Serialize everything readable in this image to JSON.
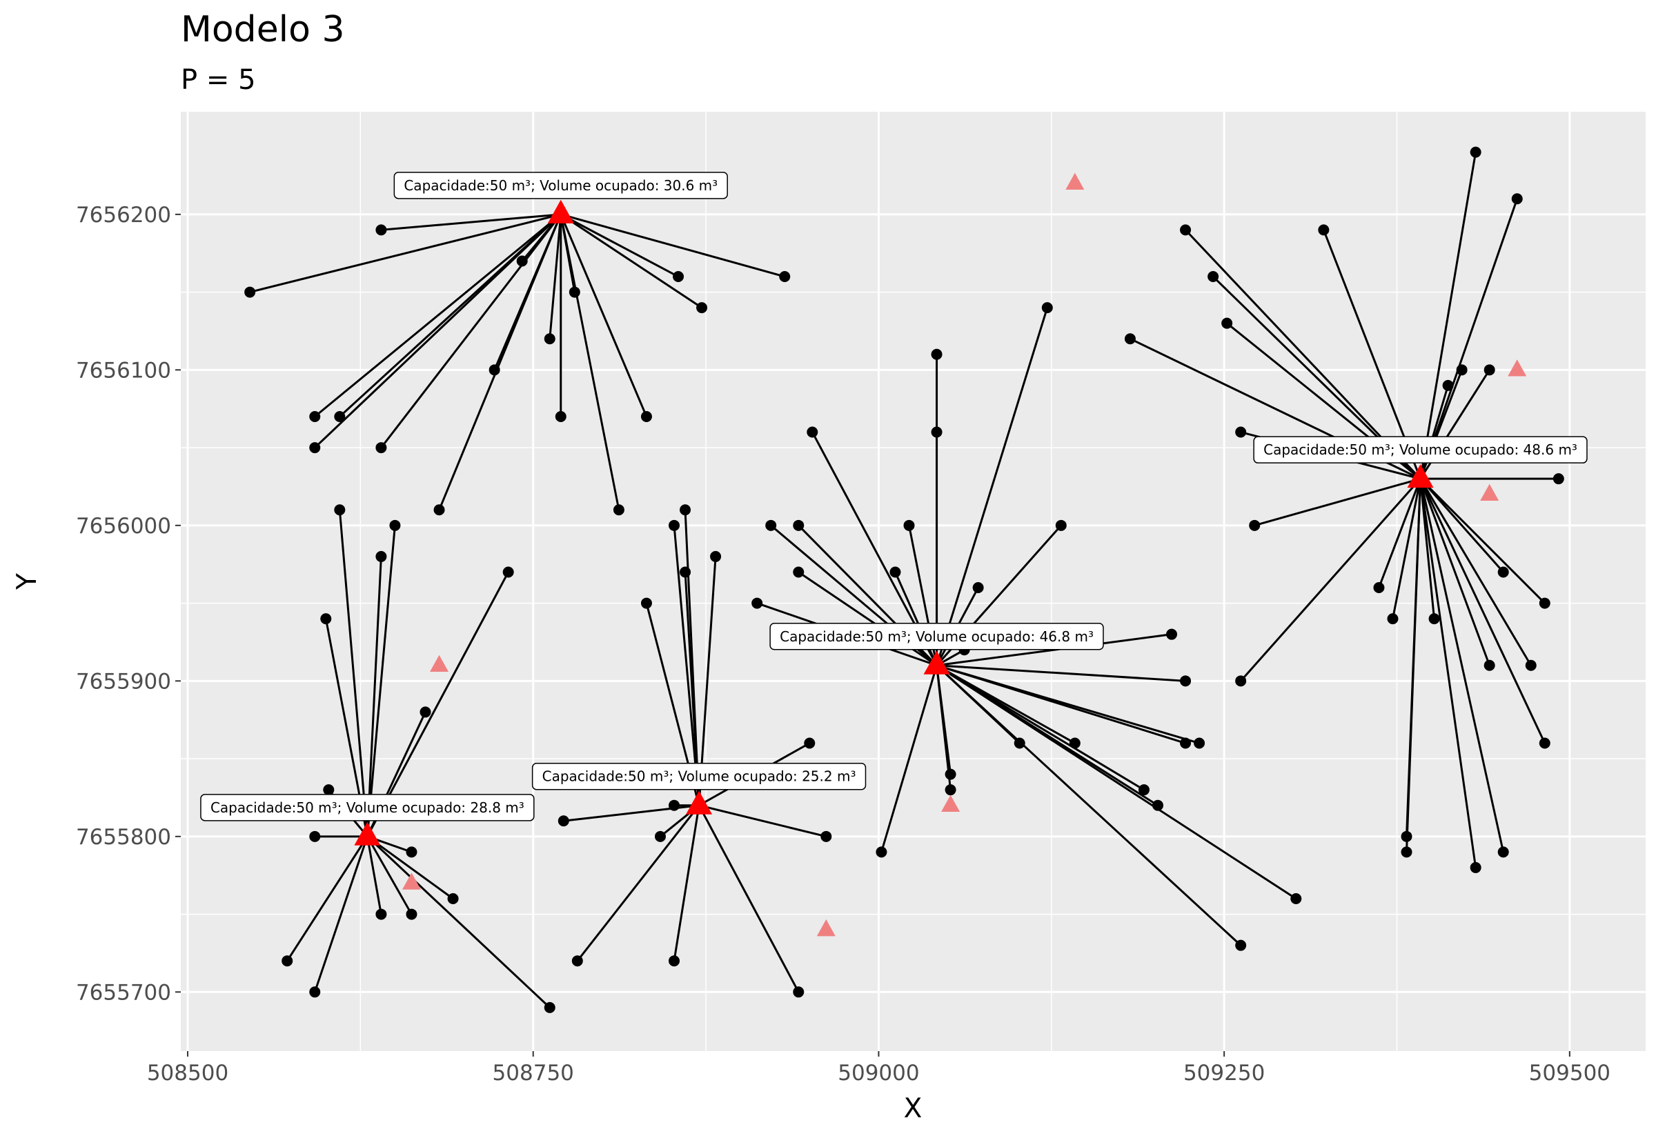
{
  "chart_data": {
    "type": "scatter",
    "title": "Modelo 3",
    "subtitle": "P = 5",
    "xlabel": "X",
    "ylabel": "Y",
    "xlim": [
      508495,
      509555
    ],
    "ylim": [
      7655662,
      7656266
    ],
    "xticks": [
      508500,
      508750,
      509000,
      509250,
      509500
    ],
    "yticks": [
      7655700,
      7655800,
      7655900,
      7656000,
      7656100,
      7656200
    ],
    "xtick_labels": [
      "508500",
      "508750",
      "509000",
      "509250",
      "509500"
    ],
    "ytick_labels": [
      "7655700",
      "7655800",
      "7655900",
      "7656000",
      "7656100",
      "7656200"
    ],
    "grid": true,
    "colors": {
      "panel": "#ebebeb",
      "grid": "#ffffff",
      "point": "#000000",
      "selected": "#ff0000",
      "candidate": "#f08080"
    },
    "facilities": [
      {
        "x": 508770,
        "y": 7656200,
        "label": "Capacidade:50 m³; Volume ocupado: 30.6 m³",
        "points": [
          [
            508545,
            7656150
          ],
          [
            508640,
            7656190
          ],
          [
            508742,
            7656170
          ],
          [
            508855,
            7656160
          ],
          [
            508932,
            7656160
          ],
          [
            508872,
            7656140
          ],
          [
            508762,
            7656120
          ],
          [
            508780,
            7656150
          ],
          [
            508722,
            7656100
          ],
          [
            508592,
            7656070
          ],
          [
            508610,
            7656070
          ],
          [
            508592,
            7656050
          ],
          [
            508640,
            7656050
          ],
          [
            508770,
            7656070
          ],
          [
            508832,
            7656070
          ],
          [
            508682,
            7656010
          ],
          [
            508812,
            7656010
          ]
        ]
      },
      {
        "x": 508630,
        "y": 7655800,
        "label": "Capacidade:50 m³; Volume ocupado: 28.8 m³",
        "points": [
          [
            508610,
            7656010
          ],
          [
            508650,
            7656000
          ],
          [
            508640,
            7655980
          ],
          [
            508600,
            7655940
          ],
          [
            508732,
            7655970
          ],
          [
            508672,
            7655880
          ],
          [
            508602,
            7655830
          ],
          [
            508592,
            7655800
          ],
          [
            508662,
            7655790
          ],
          [
            508640,
            7655750
          ],
          [
            508662,
            7655750
          ],
          [
            508692,
            7655760
          ],
          [
            508572,
            7655720
          ],
          [
            508592,
            7655700
          ],
          [
            508762,
            7655690
          ]
        ]
      },
      {
        "x": 508870,
        "y": 7655820,
        "label": "Capacidade:50 m³; Volume ocupado: 25.2 m³",
        "points": [
          [
            508852,
            7656000
          ],
          [
            508860,
            7656010
          ],
          [
            508882,
            7655980
          ],
          [
            508860,
            7655970
          ],
          [
            508832,
            7655950
          ],
          [
            508852,
            7655820
          ],
          [
            508842,
            7655800
          ],
          [
            508772,
            7655810
          ],
          [
            508962,
            7655800
          ],
          [
            508782,
            7655720
          ],
          [
            508852,
            7655720
          ],
          [
            508942,
            7655700
          ],
          [
            508950,
            7655860
          ]
        ]
      },
      {
        "x": 509042,
        "y": 7655910,
        "label": "Capacidade:50 m³; Volume ocupado: 46.8 m³",
        "points": [
          [
            509042,
            7656110
          ],
          [
            509042,
            7656060
          ],
          [
            508952,
            7656060
          ],
          [
            509122,
            7656140
          ],
          [
            508922,
            7656000
          ],
          [
            508942,
            7656000
          ],
          [
            509022,
            7656000
          ],
          [
            509132,
            7656000
          ],
          [
            508942,
            7655970
          ],
          [
            509012,
            7655970
          ],
          [
            509072,
            7655960
          ],
          [
            508912,
            7655950
          ],
          [
            509212,
            7655930
          ],
          [
            509062,
            7655920
          ],
          [
            509222,
            7655900
          ],
          [
            509142,
            7655860
          ],
          [
            509222,
            7655860
          ],
          [
            509232,
            7655860
          ],
          [
            509102,
            7655860
          ],
          [
            509192,
            7655830
          ],
          [
            509202,
            7655820
          ],
          [
            509052,
            7655840
          ],
          [
            509052,
            7655830
          ],
          [
            509002,
            7655790
          ],
          [
            509302,
            7655760
          ],
          [
            509262,
            7655730
          ]
        ]
      },
      {
        "x": 509392,
        "y": 7656030,
        "label": "Capacidade:50 m³; Volume ocupado: 48.6 m³",
        "points": [
          [
            509432,
            7656240
          ],
          [
            509462,
            7656210
          ],
          [
            509222,
            7656190
          ],
          [
            509322,
            7656190
          ],
          [
            509242,
            7656160
          ],
          [
            509252,
            7656130
          ],
          [
            509182,
            7656120
          ],
          [
            509422,
            7656100
          ],
          [
            509442,
            7656100
          ],
          [
            509412,
            7656090
          ],
          [
            509262,
            7656060
          ],
          [
            509492,
            7656030
          ],
          [
            509272,
            7656000
          ],
          [
            509452,
            7655970
          ],
          [
            509482,
            7655950
          ],
          [
            509362,
            7655960
          ],
          [
            509372,
            7655940
          ],
          [
            509402,
            7655940
          ],
          [
            509442,
            7655910
          ],
          [
            509472,
            7655910
          ],
          [
            509262,
            7655900
          ],
          [
            509482,
            7655860
          ],
          [
            509382,
            7655800
          ],
          [
            509382,
            7655790
          ],
          [
            509452,
            7655790
          ],
          [
            509432,
            7655780
          ]
        ]
      }
    ],
    "candidates": [
      [
        509142,
        7656220
      ],
      [
        509462,
        7656100
      ],
      [
        509442,
        7656020
      ],
      [
        508682,
        7655910
      ],
      [
        509052,
        7655820
      ],
      [
        508662,
        7655770
      ],
      [
        508962,
        7655740
      ]
    ]
  }
}
